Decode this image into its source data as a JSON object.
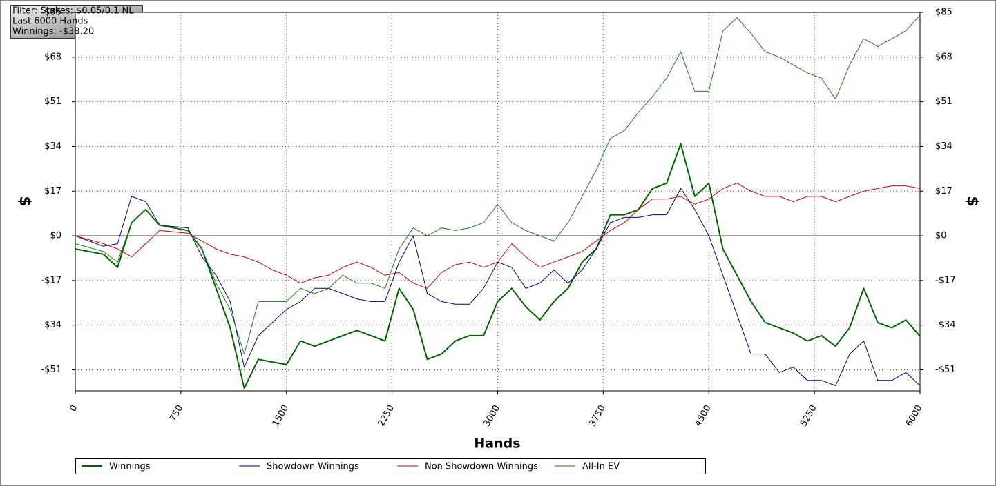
{
  "chart_data": {
    "type": "line",
    "info": [
      "Filter: Stakes: $0.05/0.1 NL",
      "Last 6000 Hands",
      "Winnings: -$38.20"
    ],
    "xlabel": "Hands",
    "ylabel": "$",
    "y2label": "$",
    "x": [
      0,
      200,
      300,
      400,
      500,
      600,
      800,
      900,
      1000,
      1100,
      1200,
      1300,
      1400,
      1500,
      1600,
      1700,
      1800,
      1900,
      2000,
      2100,
      2200,
      2300,
      2400,
      2500,
      2600,
      2700,
      2800,
      2900,
      3000,
      3100,
      3200,
      3300,
      3400,
      3500,
      3600,
      3700,
      3800,
      3900,
      4000,
      4100,
      4200,
      4300,
      4400,
      4500,
      4600,
      4700,
      4800,
      4900,
      5000,
      5100,
      5200,
      5300,
      5400,
      5500,
      5600,
      5700,
      5800,
      5900,
      6000
    ],
    "xlim": [
      0,
      6000
    ],
    "xticks": [
      0,
      750,
      1500,
      2250,
      3000,
      3750,
      4500,
      5250,
      6000
    ],
    "ylim": [
      -59,
      85
    ],
    "yticks": [
      {
        "value": -51,
        "label": "-$51"
      },
      {
        "value": -34,
        "label": "-$34"
      },
      {
        "value": -17,
        "label": "-$17"
      },
      {
        "value": 0,
        "label": "$0"
      },
      {
        "value": 17,
        "label": "$17"
      },
      {
        "value": 34,
        "label": "$34"
      },
      {
        "value": 51,
        "label": "$51"
      },
      {
        "value": 68,
        "label": "$68"
      },
      {
        "value": 85,
        "label": "$85"
      }
    ],
    "y2lim": [
      -59,
      85
    ],
    "y2ticks": [
      {
        "value": -51,
        "label": "-$51"
      },
      {
        "value": -34,
        "label": "-$34"
      },
      {
        "value": -17,
        "label": "-$17"
      },
      {
        "value": 0,
        "label": "$0"
      },
      {
        "value": 17,
        "label": "$17"
      },
      {
        "value": 34,
        "label": "$34"
      },
      {
        "value": 51,
        "label": "$51"
      },
      {
        "value": 68,
        "label": "$68"
      },
      {
        "value": 85,
        "label": "$85"
      }
    ],
    "grid": true,
    "series": [
      {
        "name": "Winnings",
        "color": "#006400",
        "width": 2,
        "values": [
          -5,
          -7,
          -12,
          5,
          10,
          4,
          2,
          -5,
          -20,
          -35,
          -58,
          -47,
          -48,
          -49,
          -40,
          -42,
          -40,
          -38,
          -36,
          -38,
          -40,
          -20,
          -28,
          -47,
          -45,
          -40,
          -38,
          -38,
          -25,
          -20,
          -27,
          -32,
          -25,
          -20,
          -10,
          -5,
          8,
          8,
          10,
          18,
          20,
          35,
          15,
          20,
          -5,
          -15,
          -25,
          -33,
          -35,
          -37,
          -40,
          -38,
          -42,
          -35,
          -20,
          -33,
          -35,
          -32,
          -38.2
        ]
      },
      {
        "name": "Showdown Winnings",
        "color": "#00008b",
        "width": 1,
        "values": [
          0,
          -4,
          -3,
          15,
          13,
          4,
          3,
          -8,
          -15,
          -25,
          -50,
          -38,
          -33,
          -28,
          -25,
          -20,
          -20,
          -22,
          -24,
          -25,
          -25,
          -10,
          0,
          -22,
          -25,
          -26,
          -26,
          -20,
          -10,
          -12,
          -20,
          -18,
          -13,
          -18,
          -13,
          -5,
          5,
          7,
          7,
          8,
          8,
          18,
          10,
          0,
          -15,
          -30,
          -45,
          -45,
          -52,
          -50,
          -55,
          -55,
          -57,
          -45,
          -40,
          -55,
          -55,
          -52,
          -57
        ]
      },
      {
        "name": "Non Showdown Winnings",
        "color": "#cc0000",
        "width": 1,
        "values": [
          0,
          -3,
          -5,
          -8,
          -3,
          2,
          1,
          -2,
          -5,
          -7,
          -8,
          -10,
          -13,
          -15,
          -18,
          -16,
          -15,
          -12,
          -10,
          -12,
          -15,
          -14,
          -18,
          -20,
          -14,
          -11,
          -10,
          -12,
          -10,
          -3,
          -8,
          -12,
          -10,
          -8,
          -6,
          -2,
          2,
          5,
          10,
          14,
          14,
          15,
          12,
          14,
          18,
          20,
          17,
          15,
          15,
          13,
          15,
          15,
          13,
          15,
          17,
          18,
          19,
          19,
          18
        ]
      },
      {
        "name": "All-In EV",
        "color": "#1e7b1e",
        "width": 1,
        "values": [
          -3,
          -6,
          -10,
          5,
          10,
          4,
          2,
          -5,
          -18,
          -28,
          -45,
          -25,
          -25,
          -25,
          -20,
          -22,
          -20,
          -15,
          -18,
          -18,
          -20,
          -5,
          3,
          0,
          3,
          2,
          3,
          5,
          12,
          5,
          2,
          0,
          -2,
          5,
          15,
          25,
          37,
          40,
          47,
          53,
          60,
          70,
          55,
          55,
          78,
          83,
          77,
          70,
          68,
          65,
          62,
          60,
          52,
          65,
          75,
          72,
          75,
          78,
          84
        ]
      }
    ]
  }
}
